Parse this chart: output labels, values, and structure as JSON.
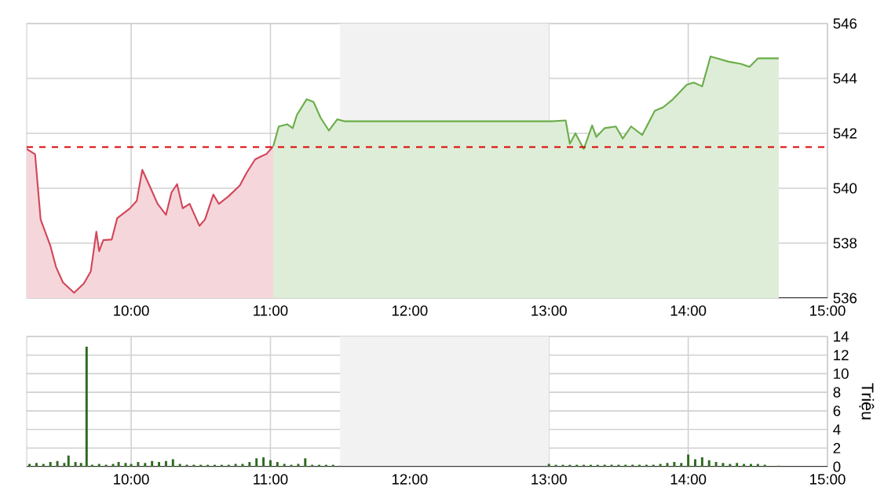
{
  "chart_data": [
    {
      "type": "area",
      "xlim": [
        9.25,
        15
      ],
      "ylim": [
        536,
        546
      ],
      "xticks": [
        {
          "value": 10,
          "label": "10:00"
        },
        {
          "value": 11,
          "label": "11:00"
        },
        {
          "value": 12,
          "label": "12:00"
        },
        {
          "value": 13,
          "label": "13:00"
        },
        {
          "value": 14,
          "label": "14:00"
        },
        {
          "value": 15,
          "label": "15:00"
        }
      ],
      "yticks": [
        536,
        538,
        540,
        542,
        544,
        546
      ],
      "grid": true,
      "bands": [
        {
          "axis": "x",
          "from": 11.5,
          "to": 13,
          "color": "#f2f2f2"
        }
      ],
      "ref_lines": [
        {
          "axis": "y",
          "value": 541.5,
          "color": "#dd0000",
          "line_style": "dashed"
        }
      ],
      "series": [
        {
          "color": "#d2475a",
          "x": [
            9.25,
            9.31,
            9.35,
            9.42,
            9.46,
            9.51,
            9.59,
            9.66,
            9.71,
            9.75,
            9.77,
            9.8,
            9.86,
            9.9,
            9.99,
            10.04,
            10.08,
            10.14,
            10.19,
            10.25,
            10.29,
            10.33,
            10.37,
            10.42,
            10.49,
            10.53,
            10.59,
            10.63,
            10.7,
            10.78,
            10.83,
            10.89,
            10.94,
            10.97,
            11.02
          ],
          "values": [
            541.43,
            541.24,
            538.86,
            537.9,
            537.14,
            536.57,
            536.19,
            536.53,
            536.97,
            538.42,
            537.71,
            538.11,
            538.13,
            538.91,
            539.26,
            539.54,
            540.67,
            540.0,
            539.43,
            539.03,
            539.85,
            540.15,
            539.27,
            539.43,
            538.63,
            538.86,
            539.77,
            539.43,
            539.71,
            540.1,
            540.57,
            541.05,
            541.18,
            541.24,
            541.53
          ]
        },
        {
          "color": "#6aae4a",
          "x": [
            11.02,
            11.06,
            11.12,
            11.16,
            11.19,
            11.26,
            11.31,
            11.36,
            11.42,
            11.48,
            11.53,
            13.02,
            13.12,
            13.15,
            13.19,
            13.25,
            13.31,
            13.34,
            13.4,
            13.48,
            13.53,
            13.59,
            13.67,
            13.76,
            13.82,
            13.89,
            13.99,
            14.04,
            14.1,
            14.16,
            14.21,
            14.29,
            14.38,
            14.44,
            14.5,
            14.65
          ],
          "values": [
            541.53,
            542.25,
            542.33,
            542.19,
            542.67,
            543.24,
            543.14,
            542.57,
            542.1,
            542.51,
            542.44,
            542.44,
            542.47,
            541.62,
            542.0,
            541.43,
            542.29,
            541.87,
            542.19,
            542.25,
            541.81,
            542.25,
            541.94,
            542.82,
            542.95,
            543.24,
            543.77,
            543.85,
            543.71,
            544.8,
            544.73,
            544.61,
            544.53,
            544.42,
            544.73,
            544.73
          ]
        }
      ]
    },
    {
      "type": "bar",
      "xlim": [
        9.25,
        15
      ],
      "ylim": [
        0,
        14
      ],
      "ylabel": "Triệu",
      "color": "#2d6a1f",
      "xticks": [
        {
          "value": 10,
          "label": "10:00"
        },
        {
          "value": 11,
          "label": "11:00"
        },
        {
          "value": 12,
          "label": "12:00"
        },
        {
          "value": 13,
          "label": "13:00"
        },
        {
          "value": 14,
          "label": "14:00"
        },
        {
          "value": 15,
          "label": "15:00"
        }
      ],
      "yticks": [
        0,
        2,
        4,
        6,
        8,
        10,
        12,
        14
      ],
      "grid": true,
      "bands": [
        {
          "axis": "x",
          "from": 11.5,
          "to": 13,
          "color": "#f2f2f2"
        }
      ],
      "x": [
        9.27,
        9.32,
        9.37,
        9.42,
        9.47,
        9.52,
        9.55,
        9.6,
        9.64,
        9.68,
        9.72,
        9.77,
        9.82,
        9.87,
        9.91,
        9.96,
        10.0,
        10.05,
        10.1,
        10.15,
        10.2,
        10.25,
        10.3,
        10.35,
        10.4,
        10.45,
        10.5,
        10.55,
        10.6,
        10.65,
        10.7,
        10.75,
        10.8,
        10.85,
        10.9,
        10.95,
        11.0,
        11.05,
        11.1,
        11.15,
        11.2,
        11.25,
        11.3,
        11.35,
        11.4,
        11.45,
        11.5,
        13.0,
        13.05,
        13.1,
        13.15,
        13.2,
        13.25,
        13.3,
        13.35,
        13.4,
        13.45,
        13.5,
        13.55,
        13.6,
        13.65,
        13.7,
        13.75,
        13.8,
        13.85,
        13.9,
        13.95,
        14.0,
        14.05,
        14.1,
        14.15,
        14.2,
        14.25,
        14.3,
        14.35,
        14.4,
        14.45,
        14.5,
        14.55,
        14.65
      ],
      "values": [
        0.3,
        0.4,
        0.3,
        0.5,
        0.6,
        0.4,
        1.2,
        0.5,
        0.4,
        12.9,
        0.2,
        0.3,
        0.2,
        0.3,
        0.5,
        0.4,
        0.3,
        0.5,
        0.4,
        0.6,
        0.5,
        0.6,
        0.8,
        0.3,
        0.2,
        0.2,
        0.2,
        0.2,
        0.2,
        0.2,
        0.2,
        0.3,
        0.3,
        0.5,
        0.9,
        1.0,
        0.7,
        0.5,
        0.3,
        0.2,
        0.3,
        0.9,
        0.2,
        0.2,
        0.2,
        0.2,
        0.1,
        0.3,
        0.2,
        0.2,
        0.2,
        0.2,
        0.2,
        0.2,
        0.2,
        0.2,
        0.2,
        0.2,
        0.2,
        0.2,
        0.2,
        0.2,
        0.2,
        0.3,
        0.4,
        0.5,
        0.4,
        1.3,
        0.8,
        1.0,
        0.7,
        0.5,
        0.4,
        0.3,
        0.4,
        0.3,
        0.3,
        0.3,
        0.2,
        0.1
      ]
    }
  ]
}
